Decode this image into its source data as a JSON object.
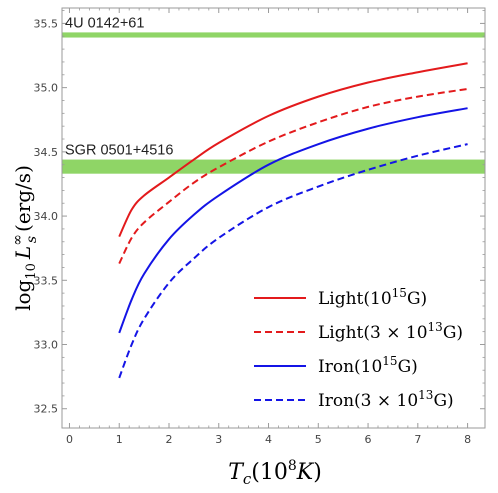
{
  "chart_data": {
    "type": "line",
    "xlabel": {
      "main": "T",
      "sub": "c",
      "unit_open": "(10",
      "sup": "8",
      "unit_k": "K",
      "unit_close": ")"
    },
    "ylabel": {
      "prefix": "log",
      "sub10": "10",
      "L": "L",
      "sup": "∞",
      "subs": "s",
      "unit": "(erg/s)"
    },
    "xlim": [
      -0.15,
      8.35
    ],
    "ylim": [
      32.35,
      35.62
    ],
    "x_ticks": [
      "0",
      "1",
      "2",
      "3",
      "4",
      "5",
      "6",
      "7",
      "8"
    ],
    "y_ticks": [
      "32.5",
      "33.0",
      "33.5",
      "34.0",
      "34.5",
      "35.0",
      "35.5"
    ],
    "grid": false,
    "bands": [
      {
        "label": "4U 0142+61",
        "y_min": 35.39,
        "y_max": 35.43,
        "color": "#8fd566"
      },
      {
        "label": "SGR 0501+4516",
        "y_min": 34.33,
        "y_max": 34.44,
        "color": "#8fd566"
      }
    ],
    "x": [
      1,
      1.25,
      1.5,
      2,
      2.5,
      3,
      4,
      5,
      6,
      7,
      8
    ],
    "series": [
      {
        "name": "Light(10^15 G)",
        "color": "#e31a1c",
        "dash": "solid",
        "values": [
          33.84,
          34.05,
          34.16,
          34.3,
          34.44,
          34.57,
          34.78,
          34.93,
          35.04,
          35.12,
          35.19
        ]
      },
      {
        "name": "Light(3 × 10^13 G)",
        "color": "#e31a1c",
        "dash": "dashed",
        "values": [
          33.63,
          33.83,
          33.95,
          34.11,
          34.26,
          34.38,
          34.58,
          34.73,
          34.85,
          34.93,
          34.99
        ]
      },
      {
        "name": "Iron(10^15 G)",
        "color": "#1414e6",
        "dash": "solid",
        "values": [
          33.09,
          33.35,
          33.55,
          33.82,
          34.01,
          34.16,
          34.4,
          34.56,
          34.68,
          34.77,
          34.84
        ]
      },
      {
        "name": "Iron(3 × 10^13 G)",
        "color": "#1414e6",
        "dash": "dashed",
        "values": [
          32.74,
          33.0,
          33.2,
          33.48,
          33.67,
          33.83,
          34.07,
          34.23,
          34.36,
          34.47,
          34.56
        ]
      }
    ],
    "legend": {
      "position": "bottom-right",
      "entries": [
        {
          "base": "Light(10",
          "sup": "15",
          "tail": "G)"
        },
        {
          "base": "Light(3 × 10",
          "sup": "13",
          "tail": "G)"
        },
        {
          "base": "Iron(10",
          "sup": "15",
          "tail": "G)"
        },
        {
          "base": "Iron(3 × 10",
          "sup": "13",
          "tail": "G)"
        }
      ]
    }
  }
}
